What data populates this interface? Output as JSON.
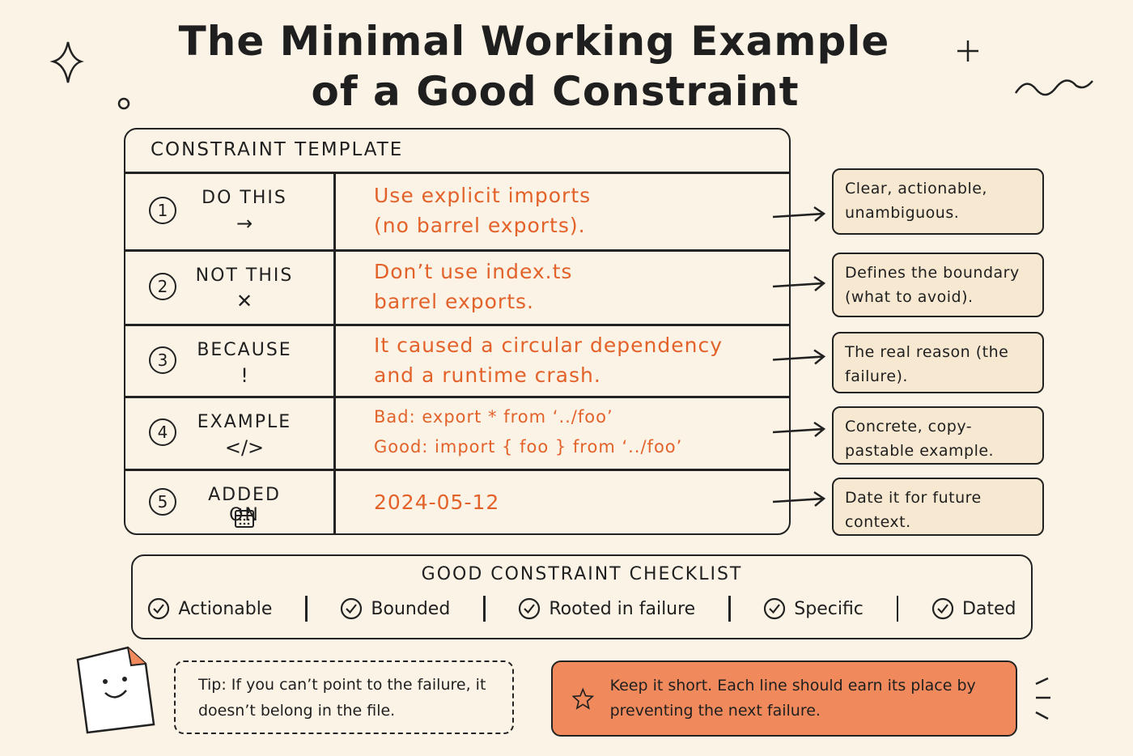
{
  "title": [
    "The Minimal Working Example",
    "of a Good Constraint"
  ],
  "template": {
    "heading": "CONSTRAINT TEMPLATE",
    "rows": [
      {
        "number": 1,
        "label": "DO THIS",
        "icon": "→",
        "content": [
          "Use explicit imports",
          "(no barrel exports)."
        ],
        "note": "Clear, actionable, unambiguous."
      },
      {
        "number": 2,
        "label": "NOT THIS",
        "icon": "✕",
        "content": [
          "Don’t use index.ts",
          "barrel exports."
        ],
        "note": "Defines the boundary (what to avoid)."
      },
      {
        "number": 3,
        "label": "BECAUSE",
        "icon": "!",
        "content": [
          "It caused a circular dependency",
          "and a runtime crash."
        ],
        "note": "The real reason (the failure)."
      },
      {
        "number": 4,
        "label": "EXAMPLE",
        "icon": "</>",
        "content": [
          "Bad: export * from ‘../foo’",
          "Good: import { foo } from ‘../foo’"
        ],
        "note": "Concrete, copy-pastable example."
      },
      {
        "number": 5,
        "label": "ADDED ON",
        "content": [
          "2024-05-12"
        ],
        "note": "Date it for future context."
      }
    ]
  },
  "checklist": {
    "title": "GOOD CONSTRAINT CHECKLIST",
    "items": [
      "Actionable",
      "Bounded",
      "Rooted in failure",
      "Specific",
      "Dated"
    ]
  },
  "tip": "Tip: If you can’t point to the failure, it doesn’t belong in the file.",
  "callout": "Keep it short. Each line should earn its place by preventing the next failure."
}
